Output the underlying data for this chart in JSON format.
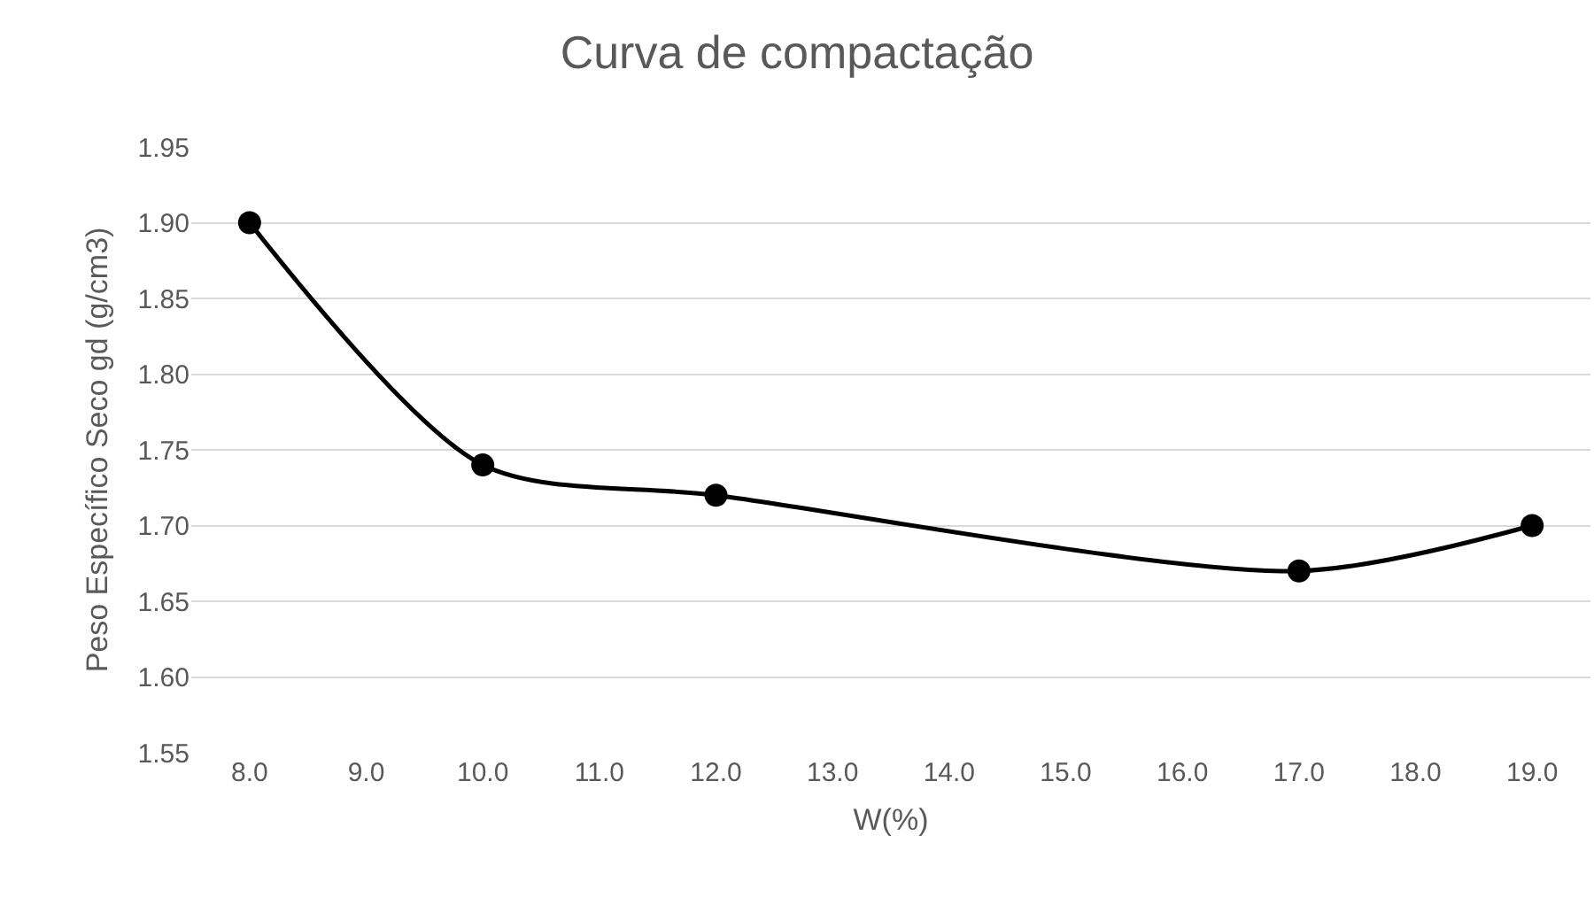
{
  "chart_data": {
    "type": "line",
    "title": "Curva de compactação",
    "xlabel": "W(%)",
    "ylabel": "Peso Específico Seco gd (g/cm3)",
    "x": [
      8,
      10,
      12,
      17,
      19
    ],
    "series": [
      {
        "color": "#000000",
        "values": [
          1.9,
          1.74,
          1.72,
          1.67,
          1.7
        ]
      }
    ],
    "xlim": [
      7.5,
      19.5
    ],
    "xticks": [
      {
        "value": 8,
        "label": "8.0"
      },
      {
        "value": 9,
        "label": "9.0"
      },
      {
        "value": 10,
        "label": "10.0"
      },
      {
        "value": 11,
        "label": "11.0"
      },
      {
        "value": 12,
        "label": "12.0"
      },
      {
        "value": 13,
        "label": "13.0"
      },
      {
        "value": 14,
        "label": "14.0"
      },
      {
        "value": 15,
        "label": "15.0"
      },
      {
        "value": 16,
        "label": "16.0"
      },
      {
        "value": 17,
        "label": "17.0"
      },
      {
        "value": 18,
        "label": "18.0"
      },
      {
        "value": 19,
        "label": "19.0"
      }
    ],
    "ylim": [
      1.55,
      1.95
    ],
    "yticks": [
      {
        "value": 1.55,
        "label": "1.55"
      },
      {
        "value": 1.6,
        "label": "1.60"
      },
      {
        "value": 1.65,
        "label": "1.65"
      },
      {
        "value": 1.7,
        "label": "1.70"
      },
      {
        "value": 1.75,
        "label": "1.75"
      },
      {
        "value": 1.8,
        "label": "1.80"
      },
      {
        "value": 1.85,
        "label": "1.85"
      },
      {
        "value": 1.9,
        "label": "1.90"
      },
      {
        "value": 1.95,
        "label": "1.95"
      }
    ],
    "grid": "y",
    "marker": "circle",
    "line_style": "solid"
  }
}
